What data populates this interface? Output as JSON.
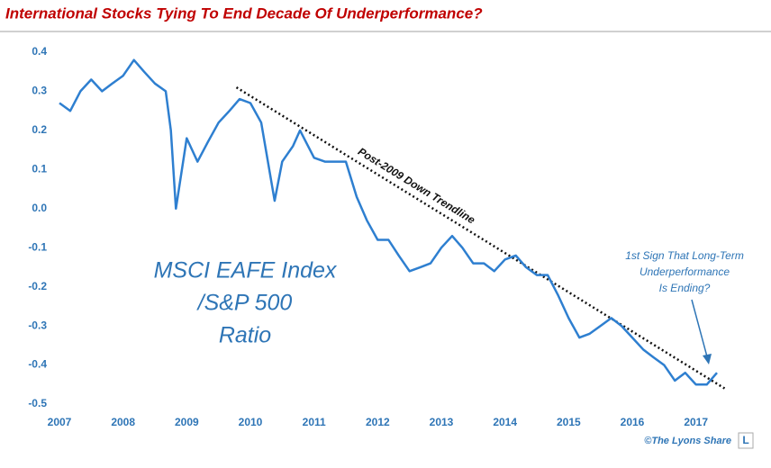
{
  "chart_data": {
    "type": "line",
    "title": "International Stocks Tying To End Decade Of Underperformance?",
    "series": [
      {
        "color": "#2e7fd0",
        "x": [
          2007,
          2007.17,
          2007.33,
          2007.5,
          2007.67,
          2007.83,
          2008,
          2008.17,
          2008.33,
          2008.5,
          2008.67,
          2008.75,
          2008.83,
          2009,
          2009.17,
          2009.33,
          2009.5,
          2009.67,
          2009.83,
          2010,
          2010.17,
          2010.38,
          2010.5,
          2010.67,
          2010.78,
          2011,
          2011.17,
          2011.33,
          2011.5,
          2011.67,
          2011.83,
          2012,
          2012.17,
          2012.33,
          2012.5,
          2012.67,
          2012.83,
          2013,
          2013.17,
          2013.33,
          2013.5,
          2013.67,
          2013.83,
          2014,
          2014.17,
          2014.33,
          2014.5,
          2014.67,
          2014.83,
          2015,
          2015.17,
          2015.33,
          2015.5,
          2015.67,
          2015.83,
          2016,
          2016.17,
          2016.33,
          2016.5,
          2016.67,
          2016.83,
          2017,
          2017.17,
          2017.33
        ],
        "values": [
          0.27,
          0.25,
          0.3,
          0.33,
          0.3,
          0.32,
          0.34,
          0.38,
          0.35,
          0.32,
          0.3,
          0.2,
          0.0,
          0.18,
          0.12,
          0.17,
          0.22,
          0.25,
          0.28,
          0.27,
          0.22,
          0.02,
          0.12,
          0.16,
          0.2,
          0.13,
          0.12,
          0.12,
          0.12,
          0.03,
          -0.03,
          -0.08,
          -0.08,
          -0.12,
          -0.16,
          -0.15,
          -0.14,
          -0.1,
          -0.07,
          -0.1,
          -0.14,
          -0.14,
          -0.16,
          -0.13,
          -0.12,
          -0.15,
          -0.17,
          -0.17,
          -0.22,
          -0.28,
          -0.33,
          -0.32,
          -0.3,
          -0.28,
          -0.3,
          -0.33,
          -0.36,
          -0.38,
          -0.4,
          -0.44,
          -0.42,
          -0.45,
          -0.45,
          -0.42
        ]
      }
    ],
    "trendline": {
      "color": "#111111",
      "x": [
        2009.78,
        2017.45
      ],
      "values": [
        0.31,
        -0.46
      ]
    },
    "xlim": [
      2007,
      2017.5
    ],
    "ylim": [
      -0.5,
      0.4
    ],
    "xticks": [
      2007,
      2008,
      2009,
      2010,
      2011,
      2012,
      2013,
      2014,
      2015,
      2016,
      2017
    ],
    "yticks": [
      0.4,
      0.3,
      0.2,
      0.1,
      {
        "value": 0,
        "label": "0.0"
      },
      -0.1,
      -0.2,
      -0.3,
      -0.4,
      -0.5
    ],
    "annotations": {
      "trendline_label": "Post-2009 Down Trendline",
      "ratio_label": [
        "MSCI EAFE Index",
        "/S&P 500",
        "Ratio"
      ],
      "sign_label": [
        "1st Sign That Long-Term",
        "Underperformance",
        "Is Ending?"
      ],
      "credit": "©The Lyons Share",
      "logo": "L"
    }
  }
}
